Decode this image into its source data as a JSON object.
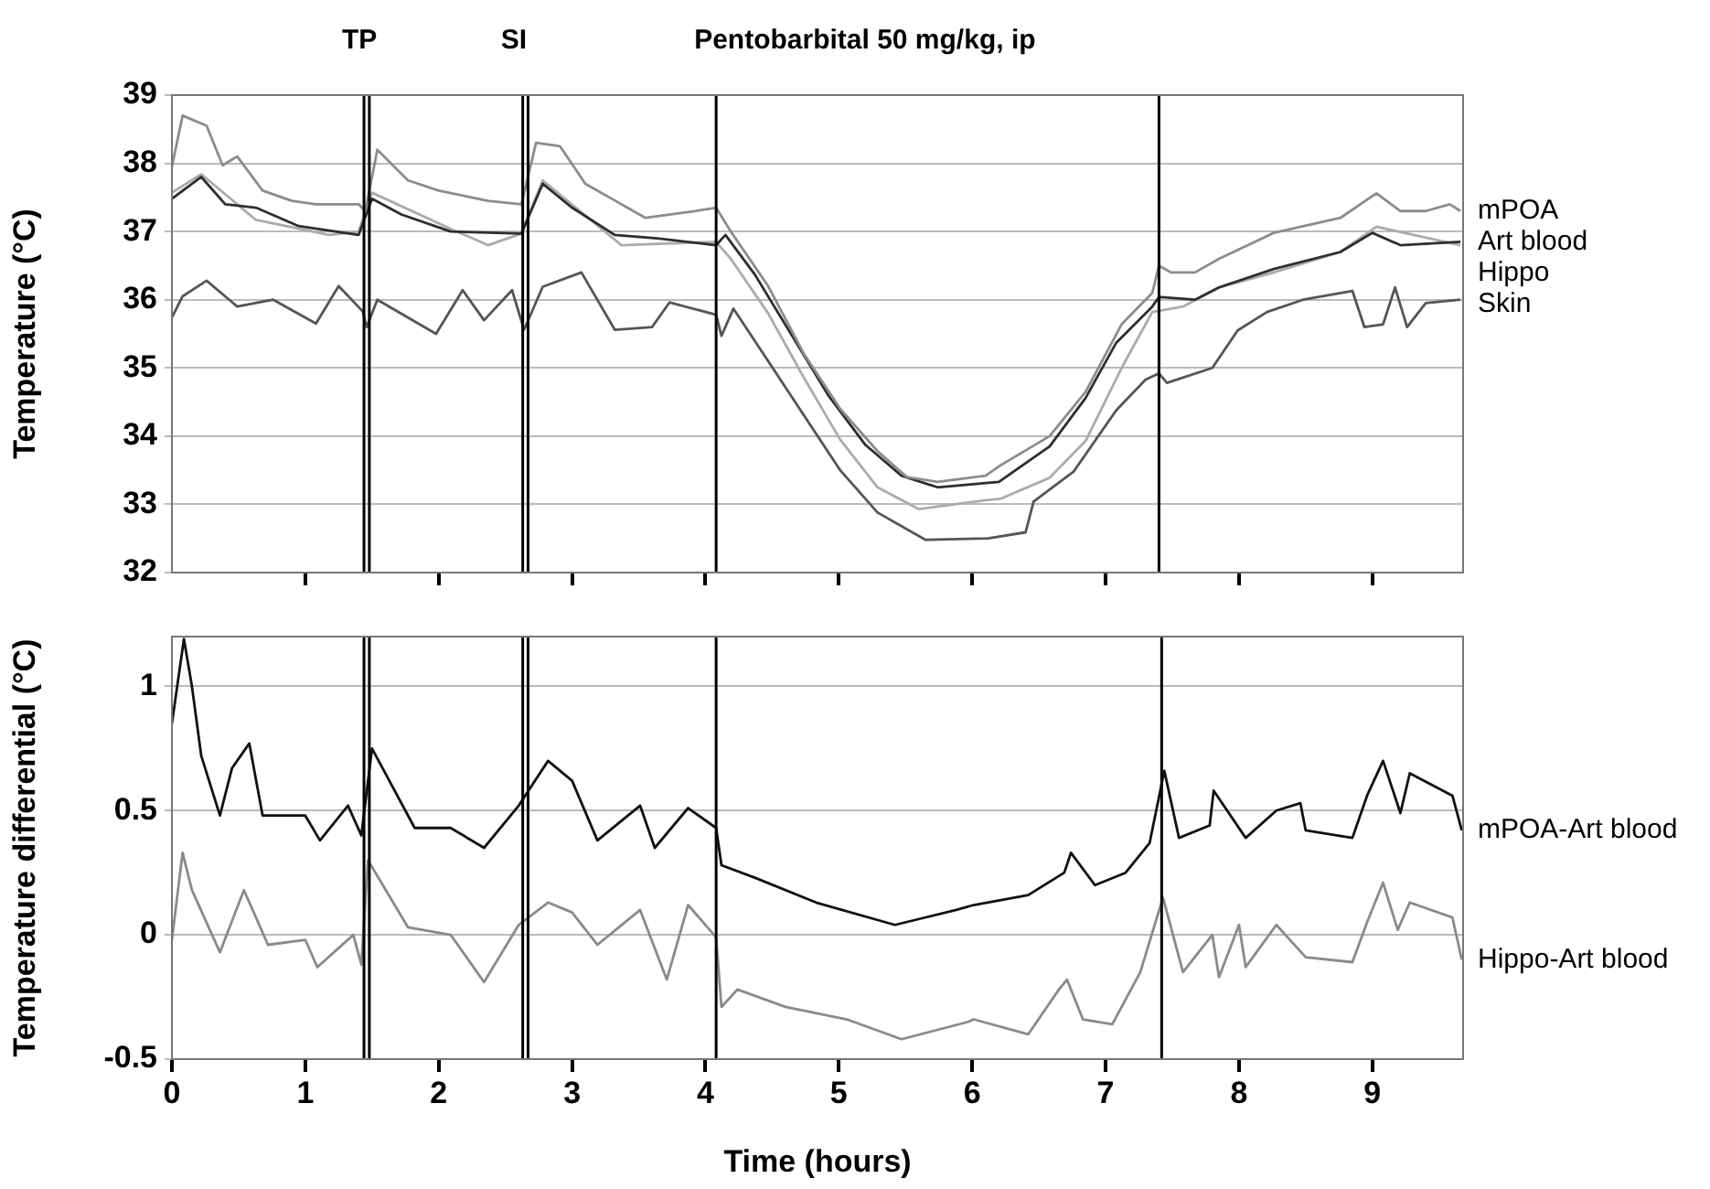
{
  "chart_data": [
    {
      "type": "line",
      "ylabel": "Temperature (°C)",
      "xlim": [
        0,
        9.68
      ],
      "xticks": [
        1,
        2,
        3,
        4,
        5,
        6,
        7,
        8,
        9
      ],
      "ylim": [
        32,
        39
      ],
      "yticks": [
        32,
        33,
        34,
        35,
        36,
        37,
        38,
        39
      ],
      "grid": "y",
      "marker": "none",
      "tick_labels": "y",
      "ref_lines": [
        {
          "axis": "x",
          "value": 1.44,
          "label": "TP"
        },
        {
          "axis": "x",
          "value": 1.48
        },
        {
          "axis": "x",
          "value": 2.63,
          "label": "SI"
        },
        {
          "axis": "x",
          "value": 2.67
        },
        {
          "axis": "x",
          "value": 4.08,
          "label": "Pentobarbital 50 mg/kg, ip"
        },
        {
          "axis": "x",
          "value": 7.4
        }
      ],
      "series": [
        {
          "name": "mPOA",
          "color": "#8c8c8c",
          "x": [
            0,
            0.08,
            0.26,
            0.38,
            0.49,
            0.68,
            0.9,
            1.08,
            1.4,
            1.45,
            1.54,
            1.77,
            2.0,
            2.37,
            2.62,
            2.73,
            2.91,
            3.1,
            3.28,
            3.55,
            3.92,
            4.08,
            4.19,
            4.47,
            4.74,
            5.01,
            5.29,
            5.51,
            5.74,
            6.1,
            6.21,
            6.58,
            6.85,
            7.12,
            7.35,
            7.4,
            7.49,
            7.67,
            7.85,
            8.26,
            8.76,
            9.03,
            9.21,
            9.4,
            9.58,
            9.66
          ],
          "values": [
            37.95,
            38.7,
            38.55,
            37.97,
            38.1,
            37.6,
            37.45,
            37.4,
            37.4,
            37.3,
            38.2,
            37.75,
            37.6,
            37.45,
            37.4,
            38.3,
            38.25,
            37.7,
            37.5,
            37.2,
            37.3,
            37.35,
            37.0,
            36.2,
            35.2,
            34.4,
            33.78,
            33.4,
            33.33,
            33.42,
            33.57,
            34.0,
            34.65,
            35.64,
            36.1,
            36.5,
            36.4,
            36.4,
            36.6,
            36.98,
            37.2,
            37.56,
            37.3,
            37.3,
            37.4,
            37.3
          ]
        },
        {
          "name": "Art blood",
          "color": "#2e2e2e",
          "x": [
            0,
            0.22,
            0.4,
            0.63,
            0.95,
            1.4,
            1.5,
            1.72,
            2.09,
            2.62,
            2.78,
            3.0,
            3.32,
            3.64,
            4.08,
            4.15,
            4.37,
            4.65,
            4.92,
            5.2,
            5.47,
            5.74,
            6.2,
            6.58,
            6.85,
            7.08,
            7.35,
            7.4,
            7.67,
            7.85,
            8.26,
            8.76,
            9.0,
            9.21,
            9.66
          ],
          "values": [
            37.48,
            37.8,
            37.4,
            37.35,
            37.08,
            36.95,
            37.48,
            37.25,
            37.0,
            36.97,
            37.7,
            37.35,
            36.95,
            36.9,
            36.8,
            36.95,
            36.37,
            35.47,
            34.6,
            33.87,
            33.42,
            33.25,
            33.33,
            33.85,
            34.56,
            35.37,
            35.9,
            36.04,
            36.0,
            36.18,
            36.45,
            36.7,
            36.98,
            36.8,
            36.85
          ]
        },
        {
          "name": "Hippo",
          "color": "#ababab",
          "x": [
            0,
            0.22,
            0.63,
            1.18,
            1.4,
            1.5,
            2.09,
            2.37,
            2.62,
            2.78,
            3.37,
            4.08,
            4.19,
            4.47,
            4.74,
            5.01,
            5.29,
            5.6,
            6.1,
            6.21,
            6.58,
            6.85,
            7.12,
            7.35,
            7.58,
            7.85,
            8.26,
            8.76,
            9.03,
            9.66
          ],
          "values": [
            37.57,
            37.84,
            37.17,
            36.95,
            37.0,
            37.57,
            37.04,
            36.8,
            36.97,
            37.75,
            36.8,
            36.85,
            36.6,
            35.8,
            34.85,
            33.95,
            33.25,
            32.93,
            33.06,
            33.08,
            33.39,
            33.93,
            35.0,
            35.82,
            35.9,
            36.18,
            36.4,
            36.7,
            37.07,
            36.8
          ]
        },
        {
          "name": "Skin",
          "color": "#555555",
          "x": [
            0,
            0.08,
            0.26,
            0.49,
            0.76,
            1.08,
            1.25,
            1.43,
            1.46,
            1.54,
            1.98,
            2.18,
            2.34,
            2.55,
            2.64,
            2.78,
            3.07,
            3.32,
            3.6,
            3.73,
            4.08,
            4.12,
            4.21,
            4.47,
            4.74,
            5.01,
            5.29,
            5.65,
            6.12,
            6.4,
            6.46,
            6.76,
            7.08,
            7.3,
            7.4,
            7.46,
            7.8,
            7.99,
            8.21,
            8.48,
            8.85,
            8.94,
            9.08,
            9.17,
            9.26,
            9.4,
            9.66
          ],
          "values": [
            35.74,
            36.05,
            36.28,
            35.9,
            36.0,
            35.65,
            36.2,
            35.83,
            35.6,
            36.0,
            35.5,
            36.14,
            35.7,
            36.14,
            35.56,
            36.19,
            36.4,
            35.56,
            35.6,
            35.96,
            35.78,
            35.47,
            35.87,
            35.1,
            34.3,
            33.5,
            32.88,
            32.48,
            32.5,
            32.59,
            33.04,
            33.48,
            34.38,
            34.83,
            34.92,
            34.78,
            35.0,
            35.55,
            35.82,
            36.0,
            36.13,
            35.6,
            35.64,
            36.18,
            35.6,
            35.95,
            36.0
          ]
        }
      ]
    },
    {
      "type": "line",
      "xlabel": "Time (hours)",
      "ylabel": "Temperature differential (°C)",
      "xlim": [
        0,
        9.68
      ],
      "xticks": [
        0,
        1,
        2,
        3,
        4,
        5,
        6,
        7,
        8,
        9
      ],
      "ylim": [
        -0.5,
        1.2
      ],
      "yticks": [
        -0.5,
        0,
        0.5,
        1
      ],
      "grid": "y",
      "marker": "none",
      "ref_lines": [
        {
          "axis": "x",
          "value": 1.44
        },
        {
          "axis": "x",
          "value": 1.48
        },
        {
          "axis": "x",
          "value": 2.63
        },
        {
          "axis": "x",
          "value": 2.67
        },
        {
          "axis": "x",
          "value": 4.08
        },
        {
          "axis": "x",
          "value": 7.42
        }
      ],
      "series": [
        {
          "name": "mPOA-Art blood",
          "color": "#111111",
          "x": [
            0,
            0.09,
            0.15,
            0.22,
            0.36,
            0.45,
            0.58,
            0.68,
            1.0,
            1.11,
            1.32,
            1.42,
            1.5,
            1.63,
            1.82,
            2.09,
            2.34,
            2.6,
            2.82,
            3.0,
            3.19,
            3.51,
            3.62,
            3.87,
            4.08,
            4.12,
            4.37,
            4.83,
            5.42,
            5.88,
            6.01,
            6.42,
            6.69,
            6.74,
            6.92,
            7.15,
            7.33,
            7.44,
            7.55,
            7.78,
            7.81,
            8.05,
            8.28,
            8.46,
            8.5,
            8.85,
            8.96,
            9.08,
            9.21,
            9.28,
            9.6,
            9.67
          ],
          "values": [
            0.85,
            1.19,
            1.0,
            0.72,
            0.48,
            0.67,
            0.77,
            0.48,
            0.48,
            0.38,
            0.52,
            0.4,
            0.75,
            0.62,
            0.43,
            0.43,
            0.35,
            0.52,
            0.7,
            0.62,
            0.38,
            0.52,
            0.35,
            0.51,
            0.43,
            0.28,
            0.23,
            0.13,
            0.04,
            0.1,
            0.12,
            0.16,
            0.25,
            0.33,
            0.2,
            0.25,
            0.37,
            0.66,
            0.39,
            0.44,
            0.58,
            0.39,
            0.5,
            0.53,
            0.42,
            0.39,
            0.56,
            0.7,
            0.49,
            0.65,
            0.56,
            0.42
          ]
        },
        {
          "name": "Hippo-Art blood",
          "color": "#8a8a8a",
          "x": [
            0,
            0.08,
            0.15,
            0.36,
            0.54,
            0.72,
            1.0,
            1.09,
            1.36,
            1.42,
            1.47,
            1.77,
            2.09,
            2.34,
            2.6,
            2.82,
            3.0,
            3.19,
            3.51,
            3.71,
            3.87,
            4.08,
            4.12,
            4.24,
            4.6,
            5.06,
            5.47,
            5.97,
            6.01,
            6.42,
            6.65,
            6.71,
            6.83,
            7.05,
            7.26,
            7.43,
            7.58,
            7.8,
            7.85,
            8.0,
            8.05,
            8.28,
            8.5,
            8.85,
            8.96,
            9.08,
            9.19,
            9.28,
            9.6,
            9.67
          ],
          "values": [
            -0.02,
            0.33,
            0.18,
            -0.07,
            0.18,
            -0.04,
            -0.02,
            -0.13,
            0.0,
            -0.12,
            0.3,
            0.03,
            0.0,
            -0.19,
            0.04,
            0.13,
            0.09,
            -0.04,
            0.1,
            -0.18,
            0.12,
            -0.01,
            -0.29,
            -0.22,
            -0.29,
            -0.34,
            -0.42,
            -0.35,
            -0.34,
            -0.4,
            -0.22,
            -0.18,
            -0.34,
            -0.36,
            -0.15,
            0.15,
            -0.15,
            0.0,
            -0.17,
            0.04,
            -0.13,
            0.04,
            -0.09,
            -0.11,
            0.05,
            0.21,
            0.02,
            0.13,
            0.07,
            -0.1
          ]
        }
      ]
    }
  ]
}
